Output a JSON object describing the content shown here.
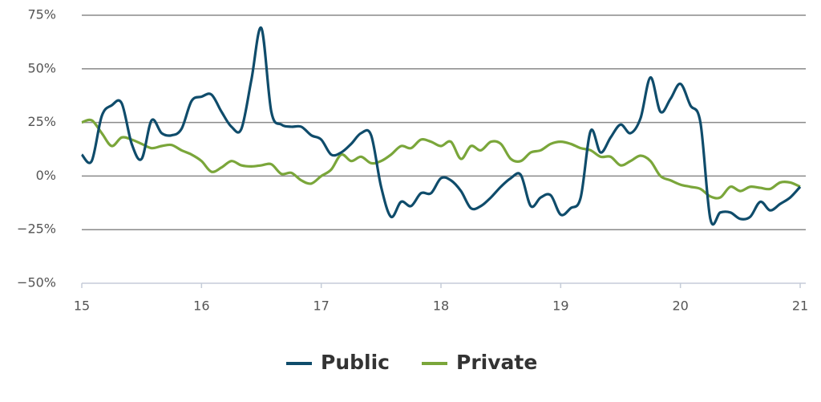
{
  "chart_data": {
    "type": "line",
    "x": [
      15,
      15.083,
      15.167,
      15.25,
      15.333,
      15.417,
      15.5,
      15.583,
      15.667,
      15.75,
      15.833,
      15.917,
      16,
      16.083,
      16.167,
      16.25,
      16.333,
      16.417,
      16.5,
      16.583,
      16.667,
      16.75,
      16.833,
      16.917,
      17,
      17.083,
      17.167,
      17.25,
      17.333,
      17.417,
      17.5,
      17.583,
      17.667,
      17.75,
      17.833,
      17.917,
      18,
      18.083,
      18.167,
      18.25,
      18.333,
      18.417,
      18.5,
      18.583,
      18.667,
      18.75,
      18.833,
      18.917,
      19,
      19.083,
      19.167,
      19.25,
      19.333,
      19.417,
      19.5,
      19.583,
      19.667,
      19.75,
      19.833,
      19.917,
      20,
      20.083,
      20.167,
      20.25,
      20.333,
      20.417,
      20.5,
      20.583,
      20.667,
      20.75,
      20.833,
      20.917,
      21
    ],
    "series": [
      {
        "name": "Public",
        "color": "#0f4c6b",
        "values": [
          10,
          7,
          28,
          33,
          34,
          15,
          8,
          26,
          20,
          19,
          22,
          35,
          37,
          38,
          30,
          23,
          22,
          45,
          69,
          30,
          24,
          23,
          23,
          19,
          17,
          10,
          11,
          15,
          20,
          19,
          -5,
          -19,
          -12,
          -14,
          -8,
          -8,
          -1,
          -2,
          -7,
          -15,
          -14,
          -10,
          -5,
          -1,
          0.5,
          -14,
          -10,
          -9,
          -18,
          -15,
          -10,
          21,
          11,
          18,
          24,
          20,
          27,
          46,
          30,
          36,
          43,
          33,
          25,
          -20,
          -17,
          -17,
          -20,
          -19,
          -12,
          -16,
          -13,
          -10,
          -5
        ]
      },
      {
        "name": "Private",
        "color": "#7aa63a",
        "values": [
          25,
          26,
          20,
          14,
          18,
          17,
          15,
          13,
          14,
          14.5,
          12,
          10,
          7,
          2,
          4,
          7,
          5,
          4.5,
          5,
          5.5,
          1,
          1.5,
          -2,
          -3.5,
          0,
          3,
          10,
          7,
          9,
          6,
          7,
          10,
          14,
          13,
          17,
          16,
          14,
          16,
          8,
          14,
          12,
          16,
          15,
          8,
          7,
          11,
          12,
          15,
          16,
          15,
          13,
          12,
          9,
          9,
          5,
          7,
          9.5,
          7,
          0,
          -2,
          -4,
          -5,
          -6,
          -9.5,
          -10,
          -5,
          -7,
          -5,
          -5.5,
          -6,
          -3,
          -3,
          -5
        ]
      }
    ],
    "xlim": [
      15,
      21
    ],
    "xticks": [
      15,
      16,
      17,
      18,
      19,
      20,
      21
    ],
    "ylim": [
      -50,
      75
    ],
    "yticks": [
      {
        "value": -50,
        "label": "−50%"
      },
      {
        "value": -25,
        "label": "−25%"
      },
      {
        "value": 0,
        "label": "0%"
      },
      {
        "value": 25,
        "label": "25%"
      },
      {
        "value": 50,
        "label": "50%"
      },
      {
        "value": 75,
        "label": "75%"
      }
    ],
    "grid": true,
    "legend": "bottom"
  }
}
